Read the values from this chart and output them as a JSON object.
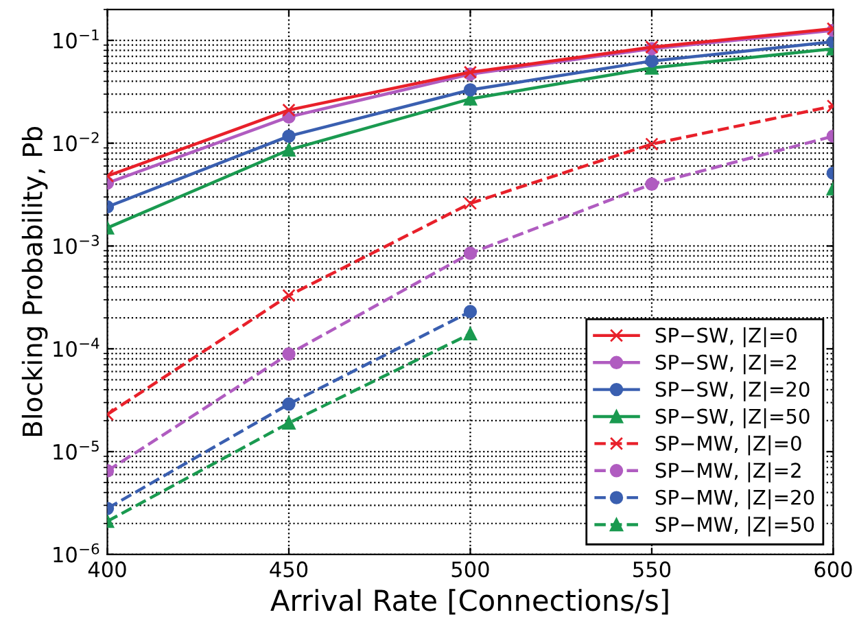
{
  "chart_data": {
    "type": "line",
    "xlabel": "Arrival Rate [Connections/s]",
    "ylabel": "Blocking Probability, Pb",
    "x": [
      400,
      450,
      500,
      550,
      600
    ],
    "series": [
      {
        "name": "SP−SW, |Z|=0",
        "color": "#e8202a",
        "marker": "cross",
        "line_style": "solid",
        "values": [
          0.0048,
          0.021,
          0.049,
          0.086,
          0.13
        ]
      },
      {
        "name": "SP−SW, |Z|=2",
        "color": "#b05cc0",
        "marker": "circle",
        "line_style": "solid",
        "values": [
          0.0041,
          0.018,
          0.047,
          0.083,
          0.125
        ]
      },
      {
        "name": "SP−SW, |Z|=20",
        "color": "#3a5fb0",
        "marker": "circle",
        "line_style": "solid",
        "values": [
          0.0024,
          0.0117,
          0.033,
          0.063,
          0.097
        ]
      },
      {
        "name": "SP−SW, |Z|=50",
        "color": "#1a9a50",
        "marker": "triangle",
        "line_style": "solid",
        "values": [
          0.0015,
          0.0086,
          0.027,
          0.054,
          0.083
        ]
      },
      {
        "name": "SP−MW, |Z|=0",
        "color": "#e8202a",
        "marker": "cross",
        "line_style": "dashed",
        "values": [
          2.3e-05,
          0.00033,
          0.0026,
          0.0098,
          0.023
        ]
      },
      {
        "name": "SP−MW, |Z|=2",
        "color": "#b05cc0",
        "marker": "circle",
        "line_style": "dashed",
        "values": [
          6.5e-06,
          8.9e-05,
          0.00085,
          0.004,
          0.0117
        ]
      },
      {
        "name": "SP−MW, |Z|=20",
        "color": "#3a5fb0",
        "marker": "circle",
        "line_style": "dashed",
        "values": [
          2.8e-06,
          2.9e-05,
          0.00023,
          null,
          0.0051
        ]
      },
      {
        "name": "SP−MW, |Z|=50",
        "color": "#1a9a50",
        "marker": "triangle",
        "line_style": "dashed",
        "values": [
          2.1e-06,
          1.9e-05,
          0.00014,
          null,
          0.0036
        ]
      }
    ],
    "log": "y",
    "xlim": [
      400,
      600
    ],
    "xticks": [
      400,
      450,
      500,
      550,
      600
    ],
    "ylim": [
      1e-06,
      0.2
    ],
    "yticks": [
      {
        "value": 1e-06,
        "label": "10$^{−6}$"
      },
      {
        "value": 1e-05,
        "label": "10$^{−5}$"
      },
      {
        "value": 0.0001,
        "label": "10$^{−4}$"
      },
      {
        "value": 0.001,
        "label": "10$^{−3}$"
      },
      {
        "value": 0.01,
        "label": "10$^{−2}$"
      },
      {
        "value": 0.1,
        "label": "10$^{−1}$"
      }
    ],
    "grid": true,
    "legend": "bottom right"
  }
}
